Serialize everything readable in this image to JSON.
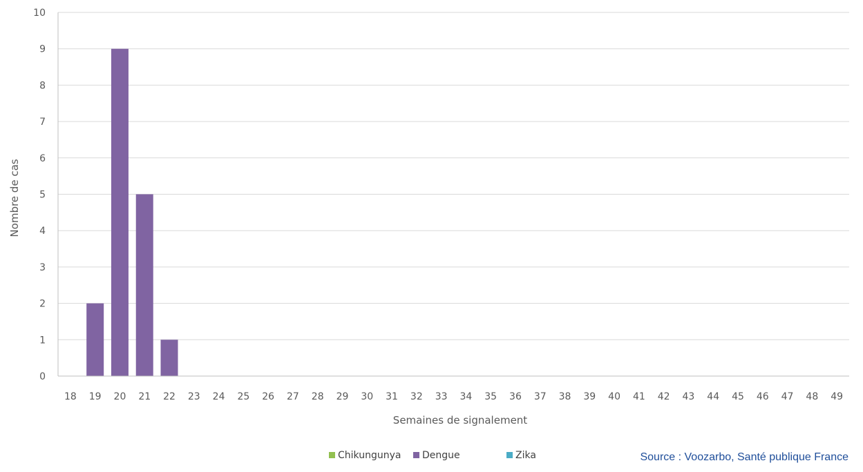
{
  "chart_data": {
    "type": "bar",
    "stacked": true,
    "categories": [
      "18",
      "19",
      "20",
      "21",
      "22",
      "23",
      "24",
      "25",
      "26",
      "27",
      "28",
      "29",
      "30",
      "31",
      "32",
      "33",
      "34",
      "35",
      "36",
      "37",
      "38",
      "39",
      "40",
      "41",
      "42",
      "43",
      "44",
      "45",
      "46",
      "47",
      "48",
      "49"
    ],
    "series": [
      {
        "name": "Chikungunya",
        "color": "#92c050",
        "values": [
          0,
          0,
          0,
          0,
          0,
          0,
          0,
          0,
          0,
          0,
          0,
          0,
          0,
          0,
          0,
          0,
          0,
          0,
          0,
          0,
          0,
          0,
          0,
          0,
          0,
          0,
          0,
          0,
          0,
          0,
          0,
          0
        ]
      },
      {
        "name": "Dengue",
        "color": "#8064a2",
        "values": [
          0,
          2,
          9,
          5,
          1,
          0,
          0,
          0,
          0,
          0,
          0,
          0,
          0,
          0,
          0,
          0,
          0,
          0,
          0,
          0,
          0,
          0,
          0,
          0,
          0,
          0,
          0,
          0,
          0,
          0,
          0,
          0
        ]
      },
      {
        "name": "Zika",
        "color": "#4bacc6",
        "values": [
          0,
          0,
          0,
          0,
          0,
          0,
          0,
          0,
          0,
          0,
          0,
          0,
          0,
          0,
          0,
          0,
          0,
          0,
          0,
          0,
          0,
          0,
          0,
          0,
          0,
          0,
          0,
          0,
          0,
          0,
          0,
          0
        ]
      }
    ],
    "xlabel": "Semaines de signalement",
    "ylabel": "Nombre de cas",
    "ylim": [
      0,
      10
    ],
    "yticks": [
      0,
      1,
      2,
      3,
      4,
      5,
      6,
      7,
      8,
      9,
      10
    ],
    "grid": true,
    "legend": "bottom",
    "source": "Source : Voozarbo, Santé publique France"
  }
}
